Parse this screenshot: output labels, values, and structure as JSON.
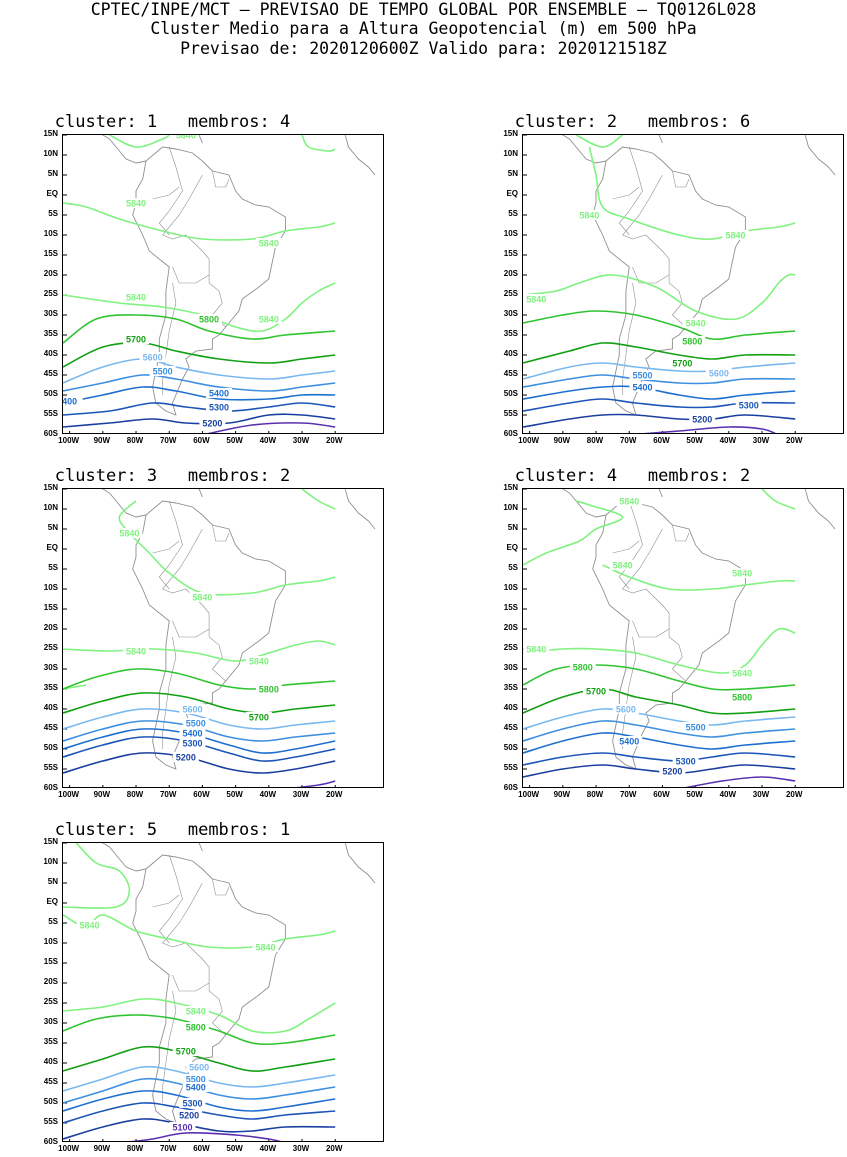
{
  "header": {
    "line1": "CPTEC/INPE/MCT – PREVISAO DE TEMPO GLOBAL POR ENSEMBLE – TQ0126L028",
    "line2": "Cluster Medio para a Altura Geopotencial (m) em 500 hPa",
    "line3": "Previsao de: 2020120600Z    Valido para: 2020121518Z"
  },
  "y_ticks": [
    "15N",
    "10N",
    "5N",
    "EQ",
    "5S",
    "10S",
    "15S",
    "20S",
    "25S",
    "30S",
    "35S",
    "40S",
    "45S",
    "50S",
    "55S",
    "60S"
  ],
  "x_ticks": [
    "100W",
    "90W",
    "80W",
    "70W",
    "60W",
    "50W",
    "40W",
    "30W",
    "20W"
  ],
  "contour_colors": {
    "5840": "#7ff27f",
    "5800": "#2fc42f",
    "5700": "#12a012",
    "5600": "#7ab8f0",
    "5500": "#3d8fe0",
    "5400": "#1e6fd0",
    "5300": "#1c55b8",
    "5200": "#1a3fa0",
    "5100": "#5a30b0"
  },
  "coastline_color": "#909090",
  "panels": [
    {
      "title": "cluster: 1   membros: 4",
      "labels": [
        {
          "text": "5840",
          "color": "#7ff27f"
        },
        {
          "text": "5840",
          "color": "#7ff27f"
        },
        {
          "text": "5840",
          "color": "#7ff27f"
        },
        {
          "text": "5840",
          "color": "#7ff27f"
        },
        {
          "text": "5840",
          "color": "#7ff27f"
        },
        {
          "text": "5800",
          "color": "#2fc42f"
        },
        {
          "text": "5700",
          "color": "#12a012"
        },
        {
          "text": "5600",
          "color": "#7ab8f0"
        },
        {
          "text": "5500",
          "color": "#3d8fe0"
        },
        {
          "text": "5400",
          "color": "#1e6fd0"
        },
        {
          "text": "400",
          "color": "#1e6fd0"
        },
        {
          "text": "5300",
          "color": "#1c55b8"
        },
        {
          "text": "5200",
          "color": "#1a3fa0"
        }
      ]
    },
    {
      "title": "cluster: 2   membros: 6",
      "labels": [
        {
          "text": "5840",
          "color": "#7ff27f"
        },
        {
          "text": "5840",
          "color": "#7ff27f"
        },
        {
          "text": "5840",
          "color": "#7ff27f"
        },
        {
          "text": "5840",
          "color": "#7ff27f"
        },
        {
          "text": "5800",
          "color": "#2fc42f"
        },
        {
          "text": "5700",
          "color": "#12a012"
        },
        {
          "text": "5600",
          "color": "#7ab8f0"
        },
        {
          "text": "5500",
          "color": "#3d8fe0"
        },
        {
          "text": "5400",
          "color": "#1e6fd0"
        },
        {
          "text": "5300",
          "color": "#1c55b8"
        },
        {
          "text": "5200",
          "color": "#1a3fa0"
        }
      ]
    },
    {
      "title": "cluster: 3   membros: 2",
      "labels": [
        {
          "text": "5840",
          "color": "#7ff27f"
        },
        {
          "text": "5840",
          "color": "#7ff27f"
        },
        {
          "text": "5840",
          "color": "#7ff27f"
        },
        {
          "text": "5840",
          "color": "#7ff27f"
        },
        {
          "text": "5800",
          "color": "#2fc42f"
        },
        {
          "text": "5700",
          "color": "#12a012"
        },
        {
          "text": "5600",
          "color": "#7ab8f0"
        },
        {
          "text": "5500",
          "color": "#3d8fe0"
        },
        {
          "text": "5400",
          "color": "#1e6fd0"
        },
        {
          "text": "5300",
          "color": "#1c55b8"
        },
        {
          "text": "5200",
          "color": "#1a3fa0"
        }
      ]
    },
    {
      "title": "cluster: 4   membros: 2",
      "labels": [
        {
          "text": "5840",
          "color": "#7ff27f"
        },
        {
          "text": "5840",
          "color": "#7ff27f"
        },
        {
          "text": "5840",
          "color": "#7ff27f"
        },
        {
          "text": "5840",
          "color": "#7ff27f"
        },
        {
          "text": "5840",
          "color": "#7ff27f"
        },
        {
          "text": "5800",
          "color": "#2fc42f"
        },
        {
          "text": "5800",
          "color": "#2fc42f"
        },
        {
          "text": "5700",
          "color": "#12a012"
        },
        {
          "text": "5600",
          "color": "#7ab8f0"
        },
        {
          "text": "5500",
          "color": "#3d8fe0"
        },
        {
          "text": "5400",
          "color": "#1e6fd0"
        },
        {
          "text": "5300",
          "color": "#1c55b8"
        },
        {
          "text": "5200",
          "color": "#1a3fa0"
        }
      ]
    },
    {
      "title": "cluster: 5   membros: 1",
      "labels": [
        {
          "text": "5840",
          "color": "#7ff27f"
        },
        {
          "text": "5840",
          "color": "#7ff27f"
        },
        {
          "text": "5840",
          "color": "#7ff27f"
        },
        {
          "text": "5800",
          "color": "#2fc42f"
        },
        {
          "text": "5700",
          "color": "#12a012"
        },
        {
          "text": "5600",
          "color": "#7ab8f0"
        },
        {
          "text": "5500",
          "color": "#3d8fe0"
        },
        {
          "text": "5400",
          "color": "#1e6fd0"
        },
        {
          "text": "5300",
          "color": "#1c55b8"
        },
        {
          "text": "5200",
          "color": "#1a3fa0"
        },
        {
          "text": "5100",
          "color": "#5a30b0"
        }
      ]
    }
  ]
}
